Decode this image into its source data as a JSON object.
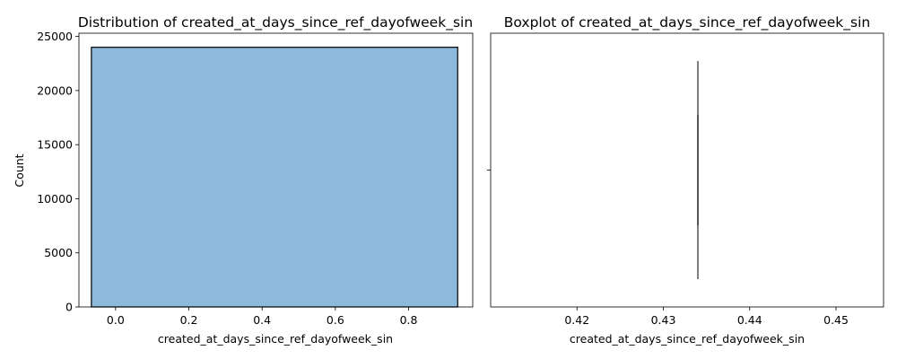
{
  "chart_data": [
    {
      "type": "bar",
      "title": "Distribution of created_at_days_since_ref_dayofweek_sin",
      "xlabel": "created_at_days_since_ref_dayofweek_sin",
      "ylabel": "Count",
      "xlim": [
        -0.1,
        0.975
      ],
      "ylim": [
        0,
        25300
      ],
      "xticks": [
        0.0,
        0.2,
        0.4,
        0.6,
        0.8
      ],
      "xtick_labels": [
        "0.0",
        "0.2",
        "0.4",
        "0.6",
        "0.8"
      ],
      "yticks": [
        0,
        5000,
        10000,
        15000,
        20000,
        25000
      ],
      "ytick_labels": [
        "0",
        "5000",
        "10000",
        "15000",
        "20000",
        "25000"
      ],
      "bins": [
        {
          "x0": -0.066,
          "x1": 0.934,
          "count": 24000
        }
      ],
      "bar_color": "#8db9da",
      "edge_color": "#000000",
      "grid": false
    },
    {
      "type": "boxplot",
      "title": "Boxplot of created_at_days_since_ref_dayofweek_sin",
      "xlabel": "created_at_days_since_ref_dayofweek_sin",
      "xlim": [
        0.41,
        0.4555
      ],
      "xticks": [
        0.42,
        0.43,
        0.44,
        0.45
      ],
      "xtick_labels": [
        "0.42",
        "0.43",
        "0.44",
        "0.45"
      ],
      "box": {
        "min": 0.434,
        "q1": 0.434,
        "median": 0.434,
        "q3": 0.434,
        "max": 0.434
      },
      "line_color": "#555555",
      "grid": false
    }
  ]
}
